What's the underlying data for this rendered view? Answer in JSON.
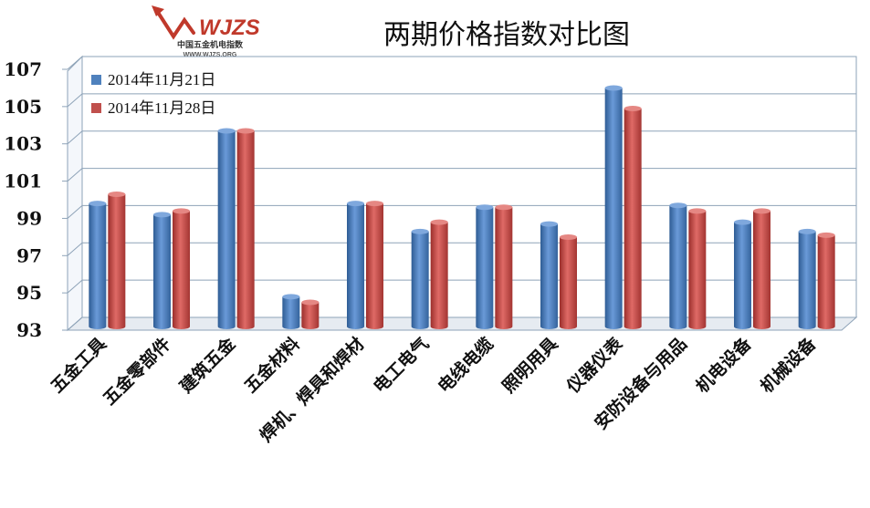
{
  "logo": {
    "mark": "WJZS",
    "name": "中国五金机电指数",
    "url": "WWW.WJZS.ORG",
    "color": "#c0392b"
  },
  "chart_data": {
    "type": "bar",
    "title": "两期价格指数对比图",
    "categories": [
      "五金工具",
      "五金零部件",
      "建筑五金",
      "五金材料",
      "焊机、焊具和焊材",
      "电工电气",
      "电线电缆",
      "照明用具",
      "仪器仪表",
      "安防设备与用品",
      "机电设备",
      "机械设备"
    ],
    "series": [
      {
        "name": "2014年11月21日",
        "color": "#4f81bd",
        "values": [
          99.6,
          99.0,
          103.5,
          94.6,
          99.6,
          98.1,
          99.4,
          98.5,
          105.8,
          99.5,
          98.6,
          98.1
        ]
      },
      {
        "name": "2014年11月28日",
        "color": "#c0504d",
        "values": [
          100.1,
          99.2,
          103.5,
          94.3,
          99.6,
          98.6,
          99.4,
          97.8,
          104.7,
          99.2,
          99.2,
          97.9
        ]
      }
    ],
    "yticks": [
      93,
      95,
      97,
      99,
      101,
      103,
      105,
      107
    ],
    "ylim": [
      93,
      107
    ],
    "grid": true,
    "legend_position": "top-left"
  }
}
